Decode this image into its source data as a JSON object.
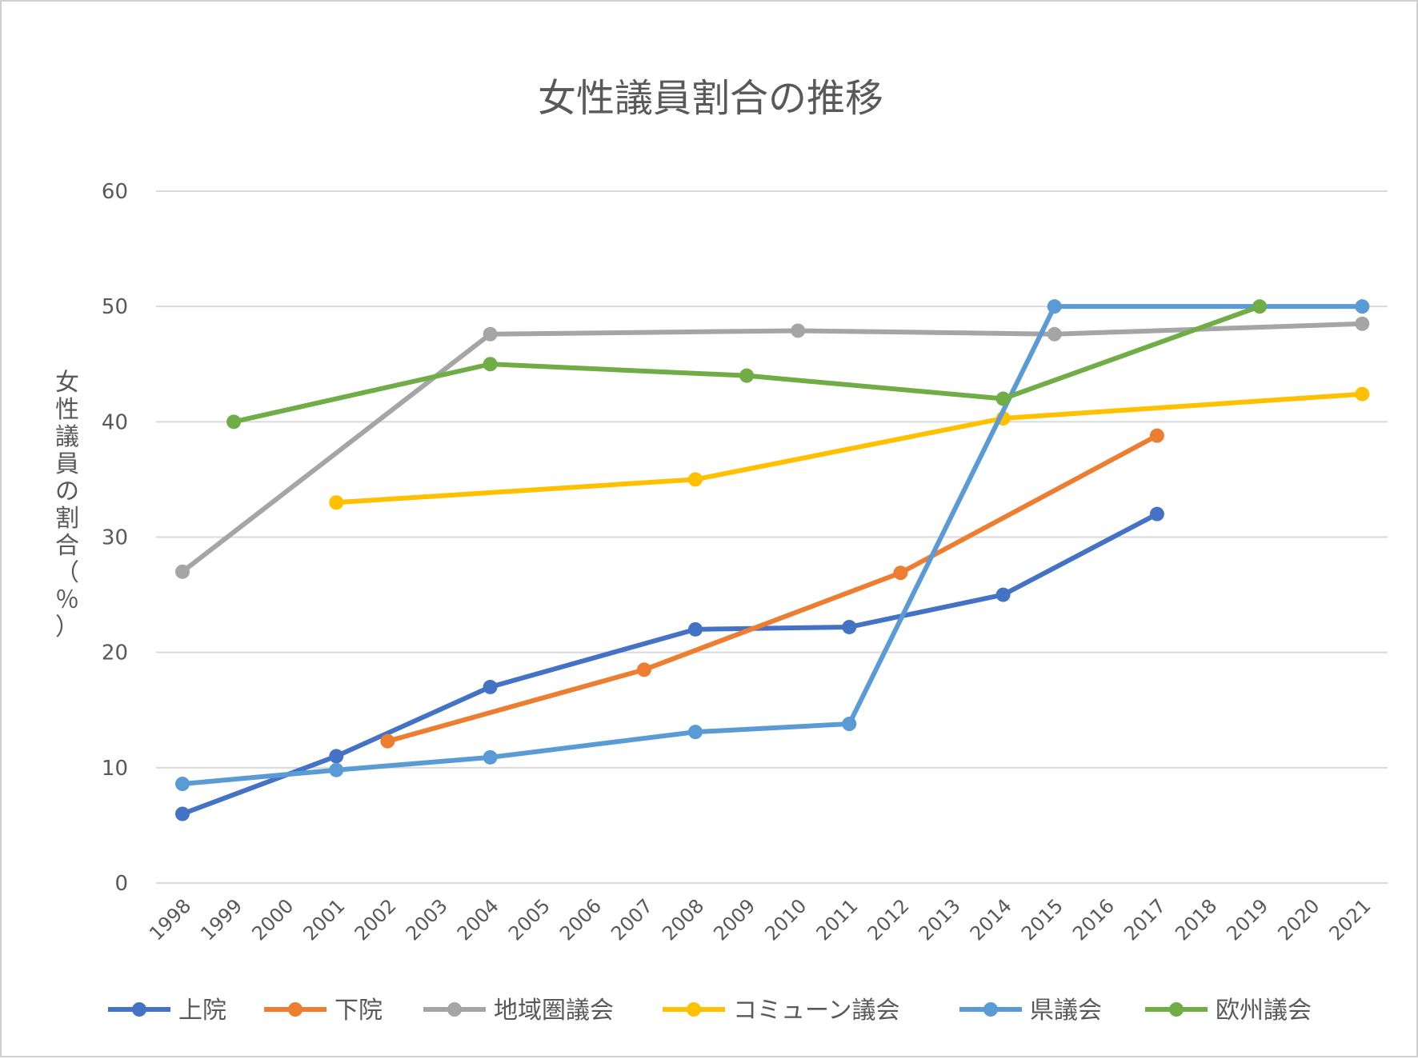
{
  "chart_data": {
    "type": "line",
    "title": "女性議員割合の推移",
    "ylabel": "女性議員の割合（％）",
    "xlabel": "",
    "ylim": [
      0,
      60
    ],
    "yticks": [
      0,
      10,
      20,
      30,
      40,
      50,
      60
    ],
    "grid": true,
    "legend_position": "bottom",
    "categories": [
      "1998",
      "1999",
      "2000",
      "2001",
      "2002",
      "2003",
      "2004",
      "2005",
      "2006",
      "2007",
      "2008",
      "2009",
      "2010",
      "2011",
      "2012",
      "2013",
      "2014",
      "2015",
      "2016",
      "2017",
      "2018",
      "2019",
      "2020",
      "2021"
    ],
    "series": [
      {
        "name": "上院",
        "color": "#4472C4",
        "points": [
          {
            "x": "1998",
            "y": 6
          },
          {
            "x": "2001",
            "y": 11
          },
          {
            "x": "2004",
            "y": 17
          },
          {
            "x": "2008",
            "y": 22
          },
          {
            "x": "2011",
            "y": 22.2
          },
          {
            "x": "2014",
            "y": 25
          },
          {
            "x": "2017",
            "y": 32
          }
        ]
      },
      {
        "name": "下院",
        "color": "#ED7D31",
        "points": [
          {
            "x": "2002",
            "y": 12.3
          },
          {
            "x": "2007",
            "y": 18.5
          },
          {
            "x": "2012",
            "y": 26.9
          },
          {
            "x": "2017",
            "y": 38.8
          }
        ]
      },
      {
        "name": "地域圏議会",
        "color": "#A5A5A5",
        "points": [
          {
            "x": "1998",
            "y": 27
          },
          {
            "x": "2004",
            "y": 47.6
          },
          {
            "x": "2010",
            "y": 47.9
          },
          {
            "x": "2015",
            "y": 47.6
          },
          {
            "x": "2021",
            "y": 48.5
          }
        ]
      },
      {
        "name": "コミューン議会",
        "color": "#FFC000",
        "points": [
          {
            "x": "2001",
            "y": 33
          },
          {
            "x": "2008",
            "y": 35
          },
          {
            "x": "2014",
            "y": 40.3
          },
          {
            "x": "2021",
            "y": 42.4
          }
        ]
      },
      {
        "name": "県議会",
        "color": "#5B9BD5",
        "points": [
          {
            "x": "1998",
            "y": 8.6
          },
          {
            "x": "2001",
            "y": 9.8
          },
          {
            "x": "2004",
            "y": 10.9
          },
          {
            "x": "2008",
            "y": 13.1
          },
          {
            "x": "2011",
            "y": 13.8
          },
          {
            "x": "2015",
            "y": 50
          },
          {
            "x": "2021",
            "y": 50
          }
        ]
      },
      {
        "name": "欧州議会",
        "color": "#70AD47",
        "points": [
          {
            "x": "1999",
            "y": 40
          },
          {
            "x": "2004",
            "y": 45
          },
          {
            "x": "2009",
            "y": 44
          },
          {
            "x": "2014",
            "y": 42
          },
          {
            "x": "2019",
            "y": 50
          }
        ]
      }
    ]
  }
}
